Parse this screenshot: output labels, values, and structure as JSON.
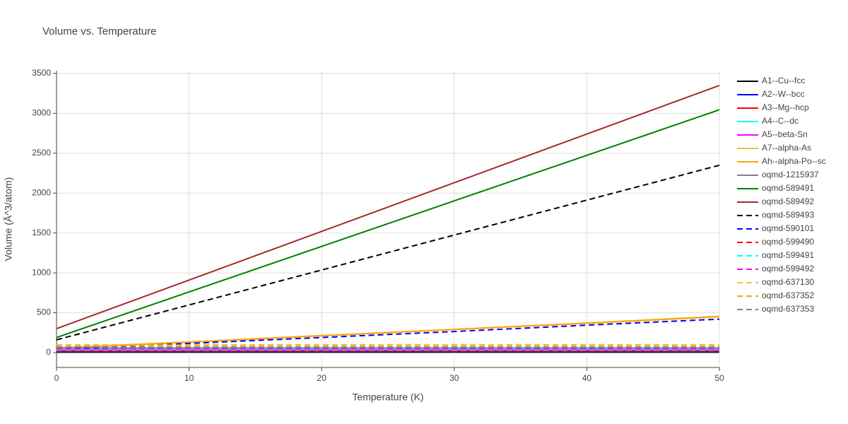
{
  "chart_data": {
    "type": "line",
    "title": "Volume vs. Temperature",
    "x_label": "Temperature (K)",
    "y_label": "Volume (Å^3/atom)",
    "x": [
      0,
      10,
      20,
      30,
      40,
      50
    ],
    "xlim": [
      0,
      50
    ],
    "xticks": [
      0,
      10,
      20,
      30,
      40,
      50
    ],
    "ylim": [
      -186,
      3535
    ],
    "yticks": [
      0,
      500,
      1000,
      1500,
      2000,
      2500,
      3000,
      3500
    ],
    "grid": true,
    "legend": "right",
    "series": [
      {
        "name": "A1--Cu--fcc",
        "color": "#000000",
        "dash": false,
        "values": [
          12,
          12,
          12,
          12,
          12,
          12
        ]
      },
      {
        "name": "A2--W--bcc",
        "color": "#0000ff",
        "dash": false,
        "values": [
          16,
          16,
          16,
          16,
          16,
          16
        ]
      },
      {
        "name": "A3--Mg--hcp",
        "color": "#ff0000",
        "dash": false,
        "values": [
          23,
          23,
          23,
          23,
          23,
          23
        ]
      },
      {
        "name": "A4--C--dc",
        "color": "#00ffff",
        "dash": false,
        "values": [
          45,
          45,
          45,
          45,
          45,
          45
        ]
      },
      {
        "name": "A5--beta-Sn",
        "color": "#ff00ff",
        "dash": false,
        "values": [
          30,
          30,
          30,
          30,
          30,
          30
        ]
      },
      {
        "name": "A7--alpha-As",
        "color": "#f0c040",
        "dash": false,
        "values": [
          60,
          135,
          215,
          292,
          372,
          455
        ]
      },
      {
        "name": "Ah--alpha-Po--sc",
        "color": "#ffa500",
        "dash": false,
        "values": [
          55,
          130,
          210,
          290,
          368,
          450
        ]
      },
      {
        "name": "oqmd-1215937",
        "color": "#808080",
        "dash": false,
        "values": [
          60,
          60,
          60,
          60,
          60,
          60
        ]
      },
      {
        "name": "oqmd-589491",
        "color": "#008000",
        "dash": false,
        "values": [
          190,
          761,
          1332,
          1903,
          2474,
          3045
        ]
      },
      {
        "name": "oqmd-589492",
        "color": "#a52a2a",
        "dash": false,
        "values": [
          300,
          910,
          1520,
          2130,
          2740,
          3350
        ]
      },
      {
        "name": "oqmd-589493",
        "color": "#000000",
        "dash": true,
        "values": [
          160,
          598,
          1036,
          1474,
          1912,
          2350
        ]
      },
      {
        "name": "oqmd-590101",
        "color": "#0000ff",
        "dash": true,
        "values": [
          40,
          115,
          190,
          265,
          345,
          420
        ]
      },
      {
        "name": "oqmd-599490",
        "color": "#ff0000",
        "dash": true,
        "values": [
          20,
          20,
          20,
          20,
          20,
          20
        ]
      },
      {
        "name": "oqmd-599491",
        "color": "#00ffff",
        "dash": true,
        "values": [
          35,
          35,
          35,
          35,
          35,
          35
        ]
      },
      {
        "name": "oqmd-599492",
        "color": "#ff00ff",
        "dash": true,
        "values": [
          45,
          45,
          45,
          45,
          45,
          45
        ]
      },
      {
        "name": "oqmd-637130",
        "color": "#f0c040",
        "dash": true,
        "values": [
          90,
          90,
          90,
          90,
          90,
          90
        ]
      },
      {
        "name": "oqmd-637352",
        "color": "#ffa500",
        "dash": true,
        "values": [
          95,
          95,
          95,
          95,
          95,
          95
        ]
      },
      {
        "name": "oqmd-637353",
        "color": "#808080",
        "dash": true,
        "values": [
          70,
          70,
          70,
          70,
          70,
          70
        ]
      }
    ]
  }
}
